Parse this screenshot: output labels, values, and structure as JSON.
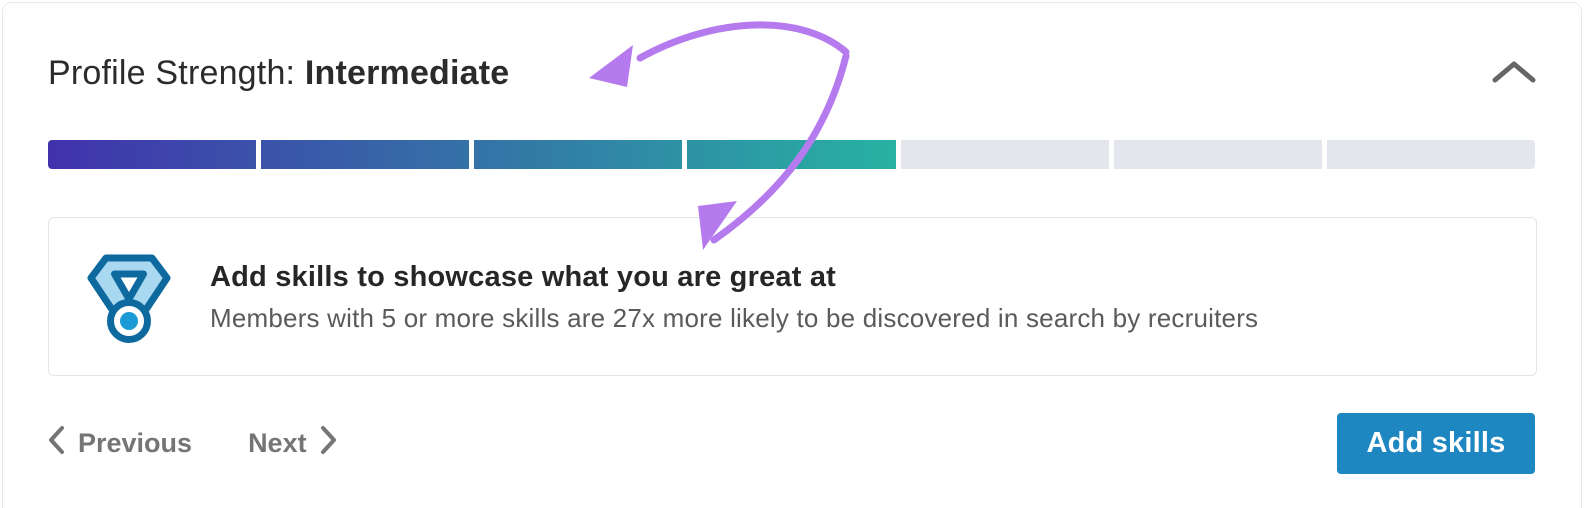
{
  "header": {
    "title_prefix": "Profile Strength: ",
    "title_value": "Intermediate",
    "collapse_icon": "chevron-up-icon",
    "collapse_icon_color": "#666666"
  },
  "progress_bar": {
    "total_segments": 7,
    "filled_segments": 4,
    "gradient_start": "#4132ac",
    "gradient_end": "#27b2a2",
    "empty_color": "#e3e7ed"
  },
  "suggestion_card": {
    "icon": "medal-icon",
    "icon_colors": {
      "outline": "#0e6a9e",
      "ribbon_fill": "#a9d8f1",
      "center_dot": "#1c9ad6"
    },
    "heading": "Add skills to showcase what you are great at",
    "description": "Members with 5 or more skills are 27x more likely to be discovered in search by recruiters"
  },
  "pagination": {
    "previous_label": "Previous",
    "next_label": "Next",
    "chevron_color": "#757575"
  },
  "action": {
    "add_skills_label": "Add skills",
    "button_color": "#1e87c2"
  },
  "annotation_arrow": {
    "type": "curved-double-arrow",
    "color": "#b57bee"
  }
}
